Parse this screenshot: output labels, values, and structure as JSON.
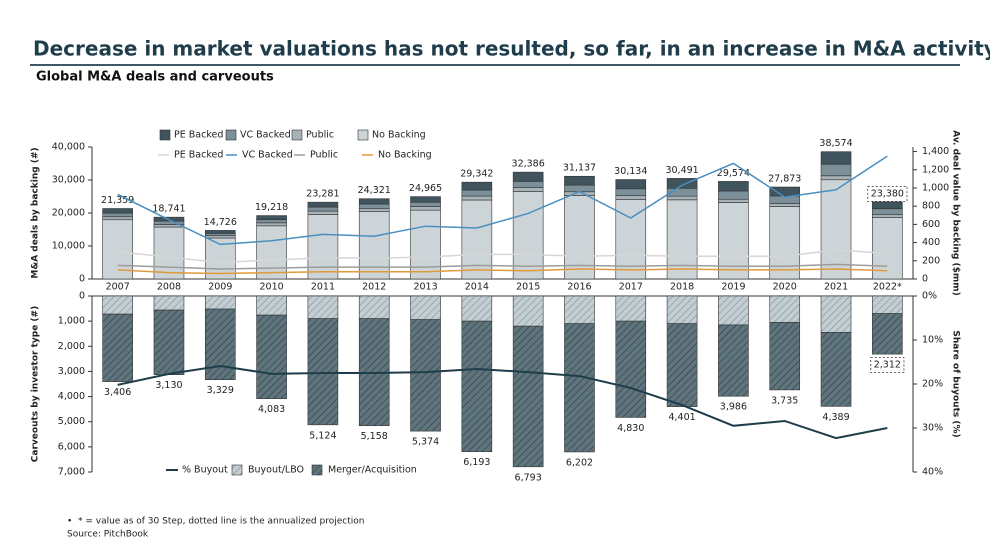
{
  "title": "Decrease in market valuations has not resulted, so far, in an increase in M&A activity",
  "subtitle": "Global M&A deals and carveouts",
  "footnote": "* = value as of 30 Step, dotted line is the annualized projection",
  "source": "Source: PitchBook",
  "chart_data": [
    {
      "type": "bar",
      "stacked": true,
      "y_label": "M&A deals by backing (#)",
      "y2_label": "Av. deal value by backing ($mm)",
      "categories": [
        "2007",
        "2008",
        "2009",
        "2010",
        "2011",
        "2012",
        "2013",
        "2014",
        "2015",
        "2016",
        "2017",
        "2018",
        "2019",
        "2020",
        "2021",
        "2022*"
      ],
      "ylim": [
        0,
        40000
      ],
      "yticks": [
        0,
        {
          "value": 10000,
          "label": "10,000"
        },
        {
          "value": 20000,
          "label": "20,000"
        },
        {
          "value": 30000,
          "label": "30,000"
        },
        {
          "value": 40000,
          "label": "40,000"
        }
      ],
      "y2lim": [
        0,
        1450
      ],
      "y2ticks": [
        0,
        200,
        400,
        600,
        800,
        {
          "value": 1000,
          "label": "1,000"
        },
        {
          "value": 1200,
          "label": "1,200"
        },
        {
          "value": 1400,
          "label": "1,400"
        }
      ],
      "series": [
        {
          "name": "No Backing",
          "color": "#cdd4d7",
          "values": [
            17959,
            15741,
            12426,
            16118,
            19581,
            20421,
            20865,
            23942,
            26486,
            25337,
            24134,
            23991,
            23174,
            21973,
            30074,
            18680
          ]
        },
        {
          "name": "Public",
          "color": "#a7b3b8",
          "values": [
            900,
            800,
            700,
            900,
            1000,
            1000,
            1100,
            1200,
            1200,
            1100,
            1100,
            1100,
            1000,
            900,
            1200,
            800
          ]
        },
        {
          "name": "VC Backed",
          "color": "#7b9098",
          "values": [
            1100,
            1000,
            700,
            1000,
            1200,
            1300,
            1300,
            1800,
            1900,
            2000,
            2100,
            2400,
            2500,
            2300,
            3500,
            1800
          ]
        },
        {
          "name": "PE Backed",
          "color": "#3f545d",
          "values": [
            1400,
            1200,
            900,
            1200,
            1500,
            1600,
            1700,
            2400,
            2800,
            2700,
            2800,
            3000,
            2900,
            2700,
            3800,
            2100
          ]
        },
        {
          "name": "PE Backed",
          "type": "line",
          "axis": "y2",
          "color": "#d6d6d6",
          "values": [
            300,
            240,
            180,
            210,
            230,
            230,
            240,
            270,
            270,
            250,
            260,
            250,
            250,
            250,
            320,
            280
          ]
        },
        {
          "name": "VC Backed",
          "type": "line",
          "axis": "y2",
          "color": "#4a8fc0",
          "values": [
            930,
            650,
            380,
            420,
            490,
            470,
            580,
            560,
            720,
            960,
            670,
            1030,
            1270,
            900,
            980,
            1350
          ]
        },
        {
          "name": "Public",
          "type": "line",
          "axis": "y2",
          "color": "#9c9c9c",
          "values": [
            150,
            130,
            110,
            120,
            130,
            130,
            130,
            150,
            140,
            150,
            140,
            150,
            140,
            140,
            160,
            140
          ]
        },
        {
          "name": "No Backing",
          "type": "line",
          "axis": "y2",
          "color": "#e09a3c",
          "values": [
            100,
            70,
            60,
            70,
            80,
            80,
            80,
            100,
            90,
            110,
            100,
            110,
            100,
            100,
            110,
            90
          ]
        }
      ],
      "totals": [
        21359,
        18741,
        14726,
        19218,
        23281,
        24321,
        24965,
        29342,
        32386,
        31137,
        30134,
        30491,
        29574,
        27873,
        38574,
        23380
      ],
      "total_labels": [
        "21,359",
        "18,741",
        "14,726",
        "19,218",
        "23,281",
        "24,321",
        "24,965",
        "29,342",
        "32,386",
        "31,137",
        "30,134",
        "30,491",
        "29,574",
        "27,873",
        "38,574",
        "23,380"
      ]
    },
    {
      "type": "bar",
      "stacked": true,
      "inverted": true,
      "hatch": true,
      "y_label": "Carveouts by investor type (#)",
      "y2_label": "Share of buyouts (%)",
      "ylim": [
        0,
        7000
      ],
      "yticks": [
        0,
        {
          "value": 1000,
          "label": "1,000"
        },
        {
          "value": 2000,
          "label": "2,000"
        },
        {
          "value": 3000,
          "label": "3,000"
        },
        {
          "value": 4000,
          "label": "4,000"
        },
        {
          "value": 5000,
          "label": "5,000"
        },
        {
          "value": 6000,
          "label": "6,000"
        },
        {
          "value": 7000,
          "label": "7,000"
        }
      ],
      "y2lim": [
        0,
        40
      ],
      "y2ticks": [
        {
          "value": 0,
          "label": "0%"
        },
        {
          "value": 10,
          "label": "10%"
        },
        {
          "value": 20,
          "label": "20%"
        },
        {
          "value": 30,
          "label": "30%"
        },
        {
          "value": 40,
          "label": "40%"
        }
      ],
      "series": [
        {
          "name": "Buyout/LBO",
          "color": "#c3ced2",
          "values": [
            720,
            560,
            520,
            760,
            900,
            900,
            940,
            1000,
            1200,
            1100,
            1000,
            1100,
            1150,
            1050,
            1450,
            700
          ]
        },
        {
          "name": "Merger/Acquisition",
          "color": "#5f747c",
          "values": [
            2686,
            2570,
            2809,
            3323,
            4224,
            4258,
            4434,
            5193,
            5593,
            5102,
            3830,
            3301,
            2836,
            2685,
            2939,
            1612
          ]
        },
        {
          "name": "% Buyout",
          "type": "line",
          "axis": "y2",
          "color": "#1f3d4a",
          "values": [
            20.2,
            17.7,
            15.9,
            17.7,
            17.5,
            17.5,
            17.3,
            16.6,
            17.3,
            18.2,
            20.9,
            24.8,
            29.5,
            28.4,
            32.3,
            30.0
          ]
        }
      ],
      "totals": [
        3406,
        3130,
        3329,
        4083,
        5124,
        5158,
        5374,
        6193,
        6793,
        6202,
        4830,
        4401,
        3986,
        3735,
        4389,
        2312
      ],
      "total_labels": [
        "3,406",
        "3,130",
        "3,329",
        "4,083",
        "5,124",
        "5,158",
        "5,374",
        "6,193",
        "6,793",
        "6,202",
        "4,830",
        "4,401",
        "3,986",
        "3,735",
        "4,389",
        "2,312"
      ]
    }
  ]
}
